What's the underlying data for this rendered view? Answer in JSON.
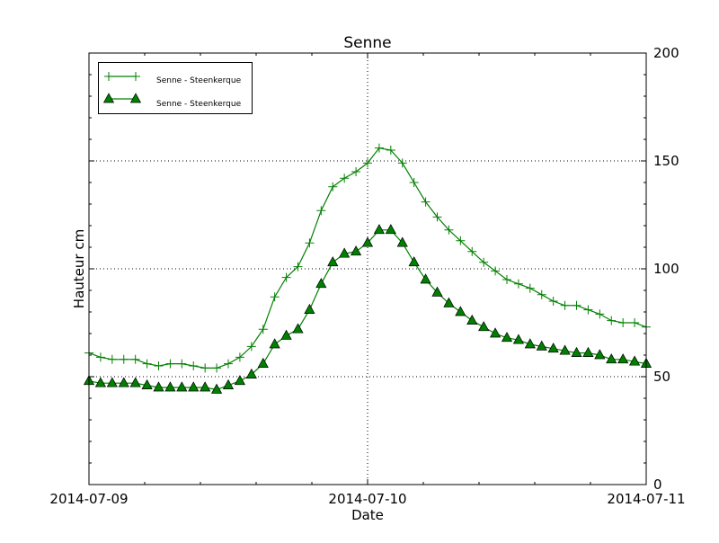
{
  "chart_data": {
    "type": "line",
    "title": "Senne",
    "xlabel": "Date",
    "ylabel": "Hauteur cm",
    "x_ticks": [
      "2014-07-09",
      "2014-07-10",
      "2014-07-11"
    ],
    "x_range": [
      "2014-07-09 00:00",
      "2014-07-11 00:00"
    ],
    "x_step": "1 hour",
    "y_ticks": [
      0,
      50,
      100,
      150,
      200
    ],
    "ylim": [
      0,
      200
    ],
    "y_axis_side": "right",
    "grid": true,
    "legend_position": "top-left",
    "series": [
      {
        "name": "Senne - Steenkerque",
        "marker": "plus",
        "color": "#008000",
        "values": [
          61,
          59,
          58,
          58,
          58,
          56,
          55,
          56,
          56,
          55,
          54,
          54,
          56,
          59,
          64,
          72,
          87,
          96,
          101,
          112,
          127,
          138,
          142,
          145,
          149,
          156,
          155,
          149,
          140,
          131,
          124,
          118,
          113,
          108,
          103,
          99,
          95,
          93,
          91,
          88,
          85,
          83,
          83,
          81,
          79,
          76,
          75,
          75,
          73
        ]
      },
      {
        "name": "Senne - Steenkerque",
        "marker": "triangle",
        "color": "#008000",
        "values": [
          48,
          47,
          47,
          47,
          47,
          46,
          45,
          45,
          45,
          45,
          45,
          44,
          46,
          48,
          51,
          56,
          65,
          69,
          72,
          81,
          93,
          103,
          107,
          108,
          112,
          118,
          118,
          112,
          103,
          95,
          89,
          84,
          80,
          76,
          73,
          70,
          68,
          67,
          65,
          64,
          63,
          62,
          61,
          61,
          60,
          58,
          58,
          57,
          56
        ]
      }
    ]
  }
}
